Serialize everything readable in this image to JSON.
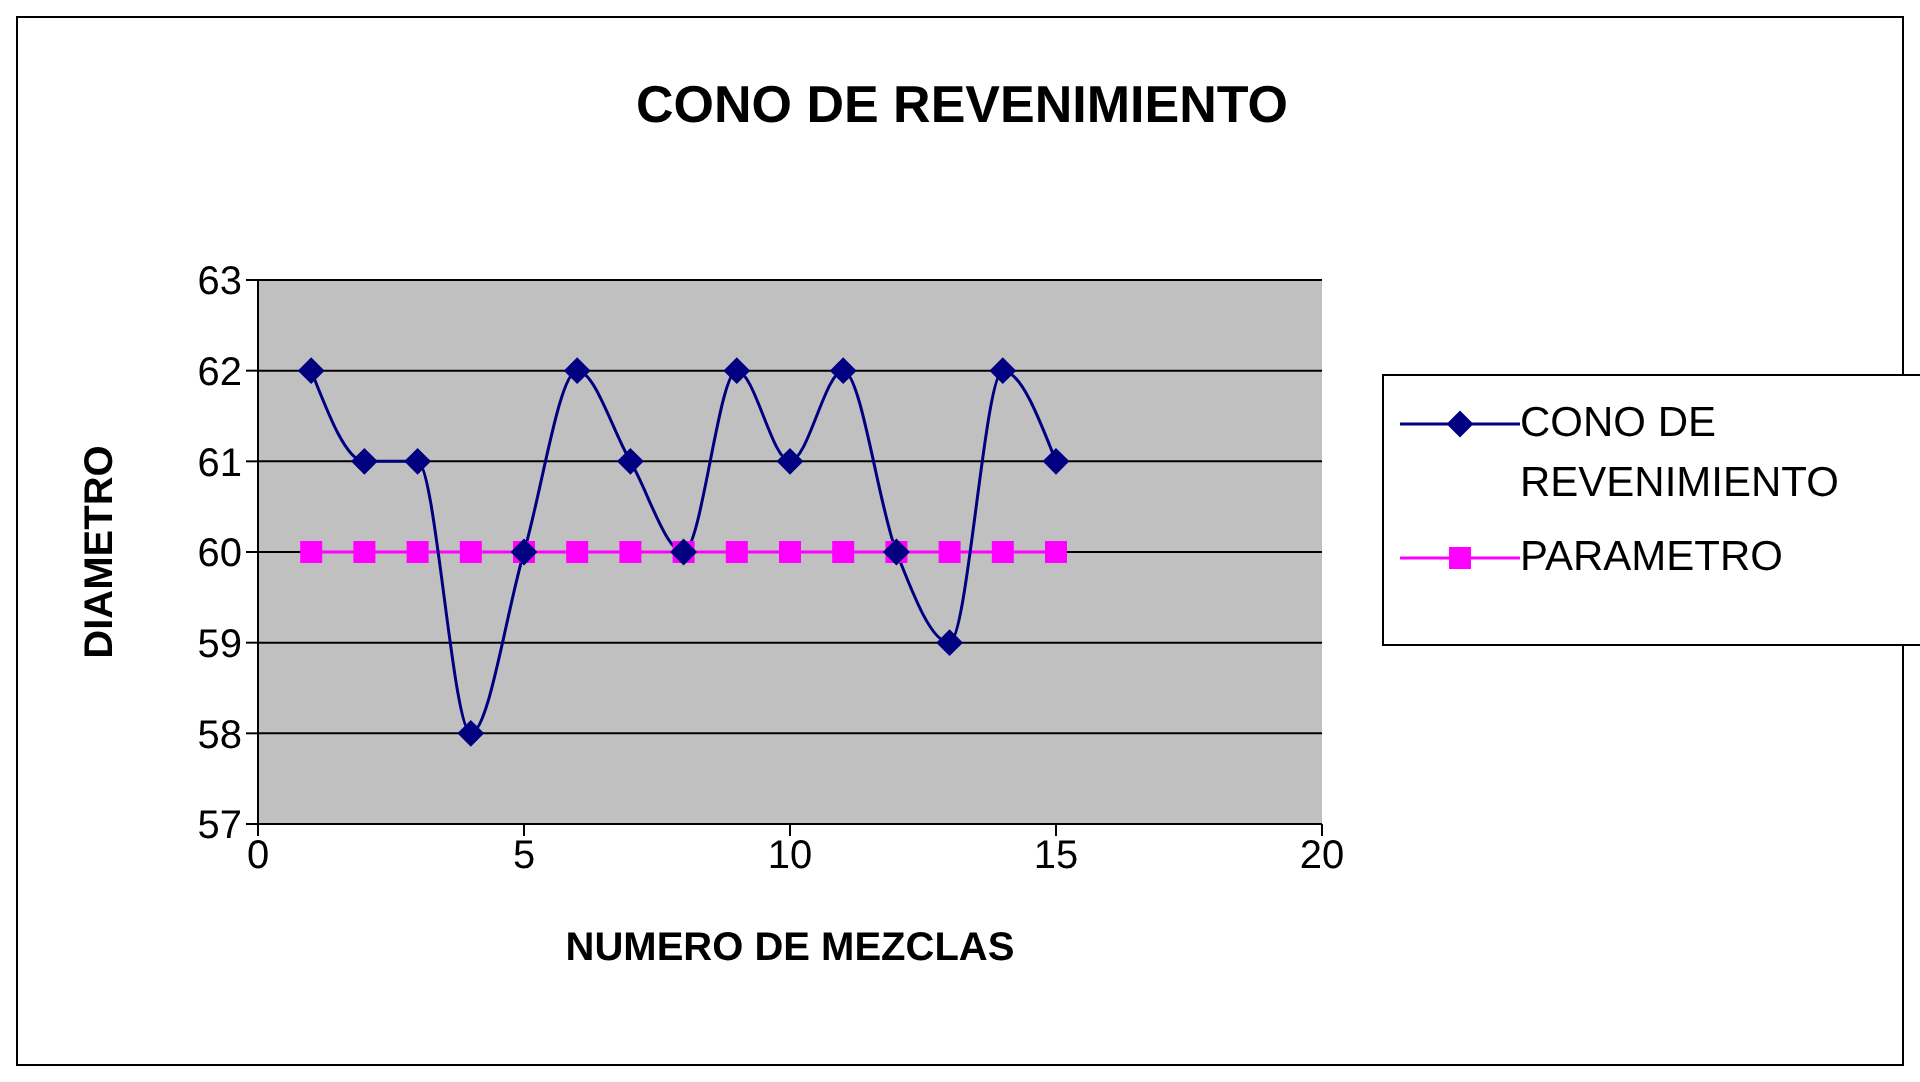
{
  "chart_data": {
    "type": "line",
    "title": "CONO DE REVENIMIENTO",
    "xlabel": "NUMERO DE MEZCLAS",
    "ylabel": "DIAMETRO",
    "x": [
      1,
      2,
      3,
      4,
      5,
      6,
      7,
      8,
      9,
      10,
      11,
      12,
      13,
      14,
      15
    ],
    "series": [
      {
        "name": "CONO DE REVENIMIENTO",
        "color": "#000080",
        "marker": "diamond",
        "values": [
          62,
          61,
          61,
          58,
          60,
          62,
          61,
          60,
          62,
          61,
          62,
          60,
          59,
          62,
          61
        ]
      },
      {
        "name": "PARAMETRO",
        "color": "#ff00ff",
        "marker": "square",
        "values": [
          60,
          60,
          60,
          60,
          60,
          60,
          60,
          60,
          60,
          60,
          60,
          60,
          60,
          60,
          60
        ]
      }
    ],
    "xlim": [
      0,
      20
    ],
    "xticks": [
      0,
      5,
      10,
      15,
      20
    ],
    "ylim": [
      57,
      63
    ],
    "yticks": [
      57,
      58,
      59,
      60,
      61,
      62,
      63
    ],
    "grid": "y",
    "legend": "right",
    "line_style": "solid"
  }
}
